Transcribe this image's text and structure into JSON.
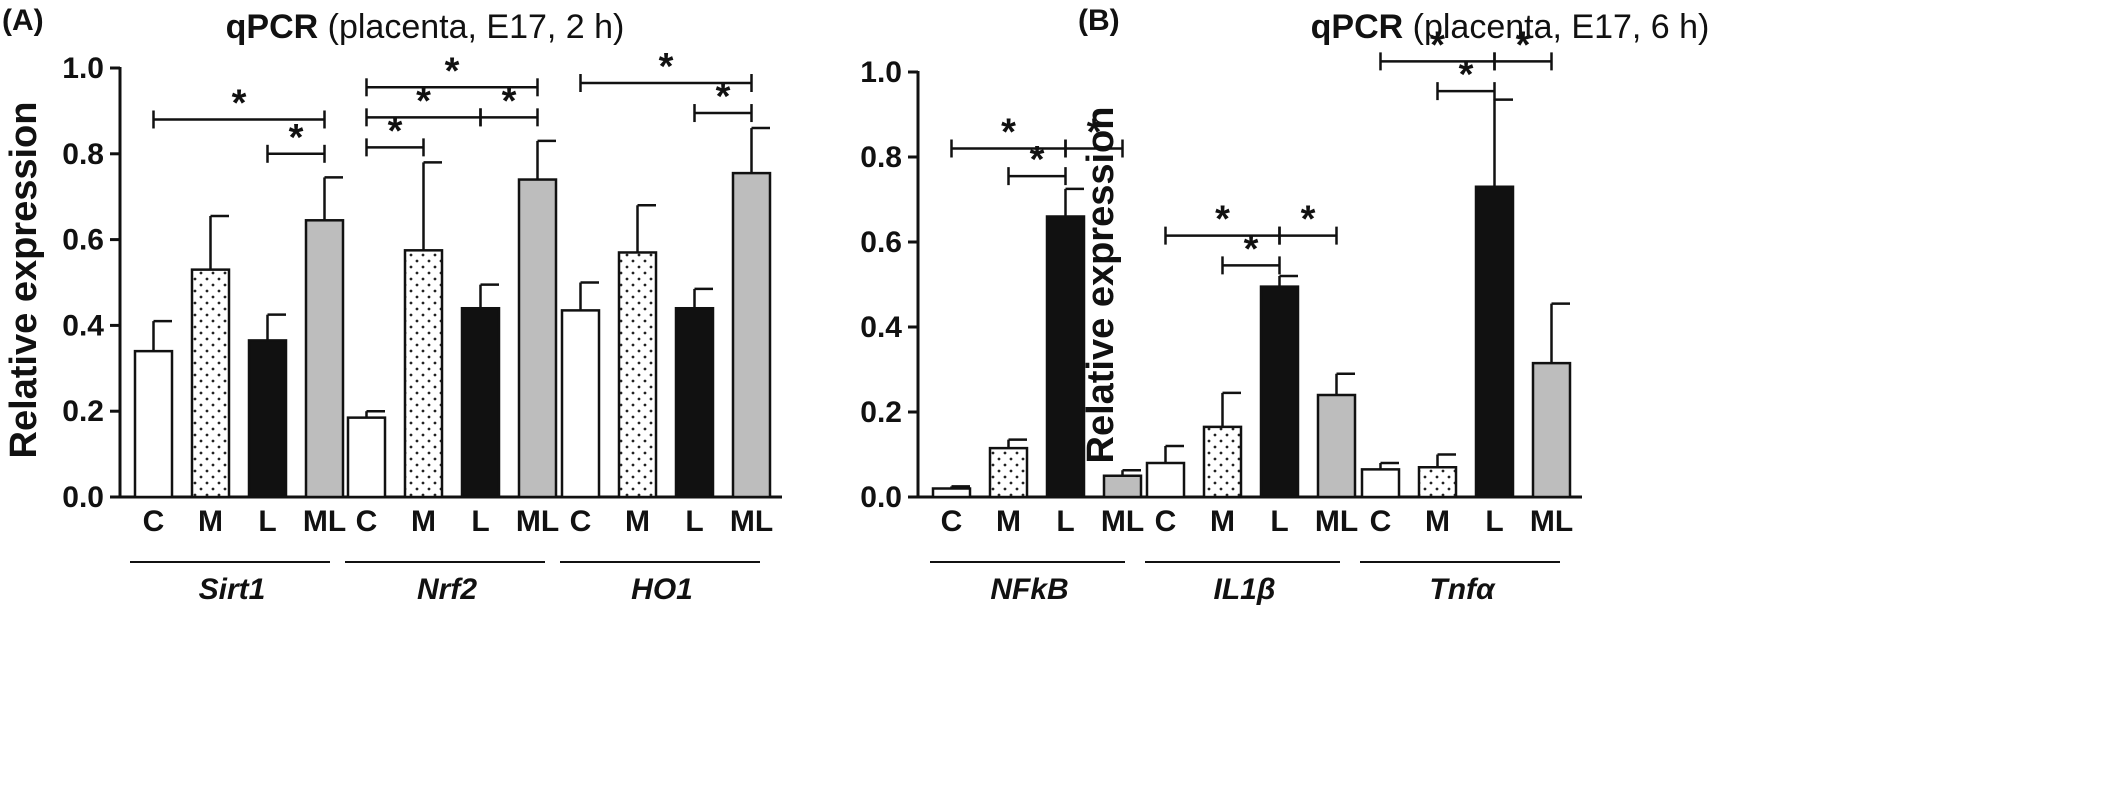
{
  "panels": [
    {
      "label": "(A)",
      "title_bold": "qPCR",
      "title_rest": " (placenta, E17, 2 h)",
      "ylabel": "Relative expression",
      "significance_marker": "*"
    },
    {
      "label": "(B)",
      "title_bold": "qPCR",
      "title_rest": " (placenta, E17, 6 h)",
      "ylabel": "Relative expression",
      "significance_marker": "*"
    }
  ],
  "chart_data": [
    {
      "type": "bar",
      "title": "qPCR (placenta, E17, 2 h)",
      "ylabel": "Relative expression",
      "ylim": [
        0,
        1.0
      ],
      "yticks": [
        "0.0",
        "0.2",
        "0.4",
        "0.6",
        "0.8",
        "1.0"
      ],
      "conditions": [
        "C",
        "M",
        "L",
        "ML"
      ],
      "condition_fills": [
        "#ffffff",
        "dots",
        "#111111",
        "#bdbdbd"
      ],
      "groups": [
        {
          "gene": "Sirt1",
          "values": [
            0.34,
            0.53,
            0.365,
            0.645
          ],
          "errors": [
            0.07,
            0.125,
            0.06,
            0.1
          ],
          "significance": [
            {
              "from": 0,
              "to": 3,
              "level": 0.88
            },
            {
              "from": 2,
              "to": 3,
              "level": 0.8
            }
          ]
        },
        {
          "gene": "Nrf2",
          "values": [
            0.185,
            0.575,
            0.44,
            0.74
          ],
          "errors": [
            0.015,
            0.205,
            0.055,
            0.09
          ],
          "significance": [
            {
              "from": 0,
              "to": 3,
              "level": 0.955
            },
            {
              "from": 0,
              "to": 2,
              "level": 0.885
            },
            {
              "from": 2,
              "to": 3,
              "level": 0.885
            },
            {
              "from": 0,
              "to": 1,
              "level": 0.815
            }
          ]
        },
        {
          "gene": "HO1",
          "values": [
            0.435,
            0.57,
            0.44,
            0.755
          ],
          "errors": [
            0.065,
            0.11,
            0.045,
            0.105
          ],
          "significance": [
            {
              "from": 0,
              "to": 3,
              "level": 0.965
            },
            {
              "from": 2,
              "to": 3,
              "level": 0.895
            }
          ]
        }
      ]
    },
    {
      "type": "bar",
      "title": "qPCR (placenta, E17, 6 h)",
      "ylabel": "Relative expression",
      "ylim": [
        0,
        1.0
      ],
      "yticks": [
        "0.0",
        "0.2",
        "0.4",
        "0.6",
        "0.8",
        "1.0"
      ],
      "conditions": [
        "C",
        "M",
        "L",
        "ML"
      ],
      "condition_fills": [
        "#ffffff",
        "dots",
        "#111111",
        "#bdbdbd"
      ],
      "groups": [
        {
          "gene": "NFkB",
          "values": [
            0.02,
            0.115,
            0.66,
            0.05
          ],
          "errors": [
            0.005,
            0.02,
            0.065,
            0.013
          ],
          "significance": [
            {
              "from": 0,
              "to": 2,
              "level": 0.82
            },
            {
              "from": 1,
              "to": 2,
              "level": 0.755
            },
            {
              "from": 2,
              "to": 3,
              "level": 0.82
            }
          ]
        },
        {
          "gene": "IL1β",
          "values": [
            0.08,
            0.165,
            0.495,
            0.24
          ],
          "errors": [
            0.04,
            0.08,
            0.025,
            0.05
          ],
          "significance": [
            {
              "from": 0,
              "to": 2,
              "level": 0.615
            },
            {
              "from": 1,
              "to": 2,
              "level": 0.545
            },
            {
              "from": 2,
              "to": 3,
              "level": 0.615
            }
          ]
        },
        {
          "gene": "Tnfα",
          "values": [
            0.065,
            0.07,
            0.73,
            0.315
          ],
          "errors": [
            0.015,
            0.03,
            0.205,
            0.14
          ],
          "significance": [
            {
              "from": 0,
              "to": 2,
              "level": 1.025
            },
            {
              "from": 1,
              "to": 2,
              "level": 0.955
            },
            {
              "from": 2,
              "to": 3,
              "level": 1.025
            }
          ]
        }
      ]
    }
  ]
}
